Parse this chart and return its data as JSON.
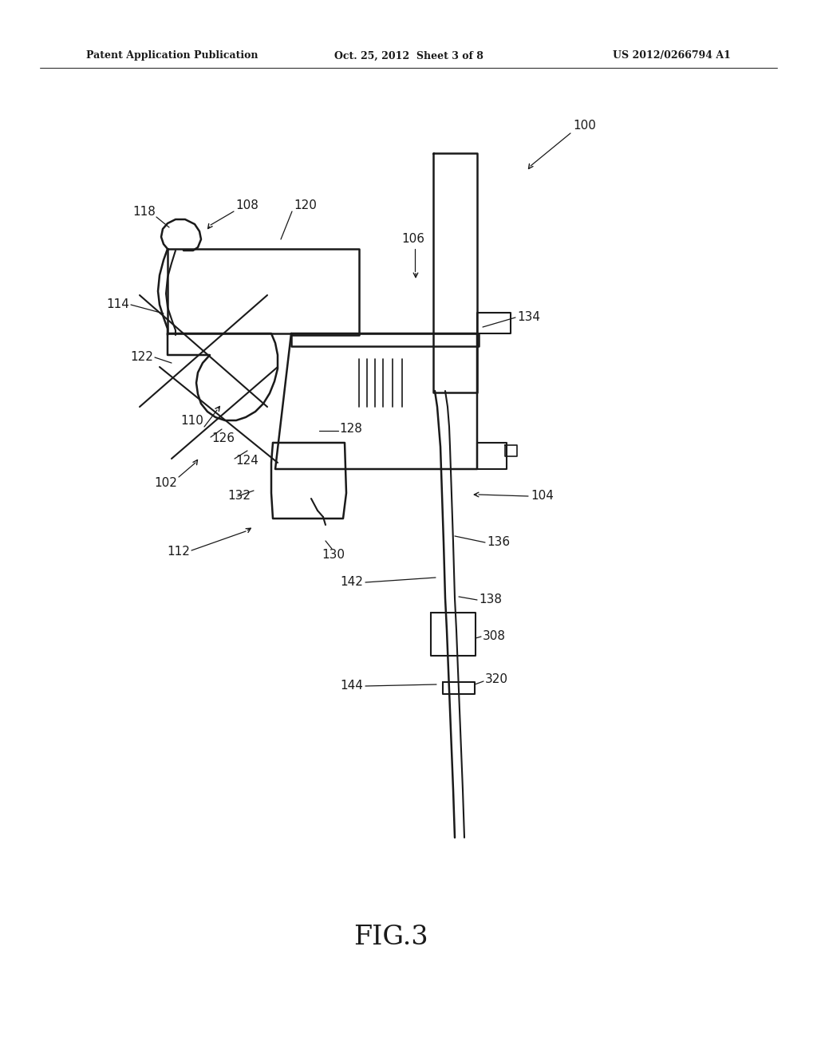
{
  "bg_color": "#ffffff",
  "line_color": "#1a1a1a",
  "header_left": "Patent Application Publication",
  "header_mid": "Oct. 25, 2012  Sheet 3 of 8",
  "header_right": "US 2012/0266794 A1",
  "figure_label": "FIG.3"
}
